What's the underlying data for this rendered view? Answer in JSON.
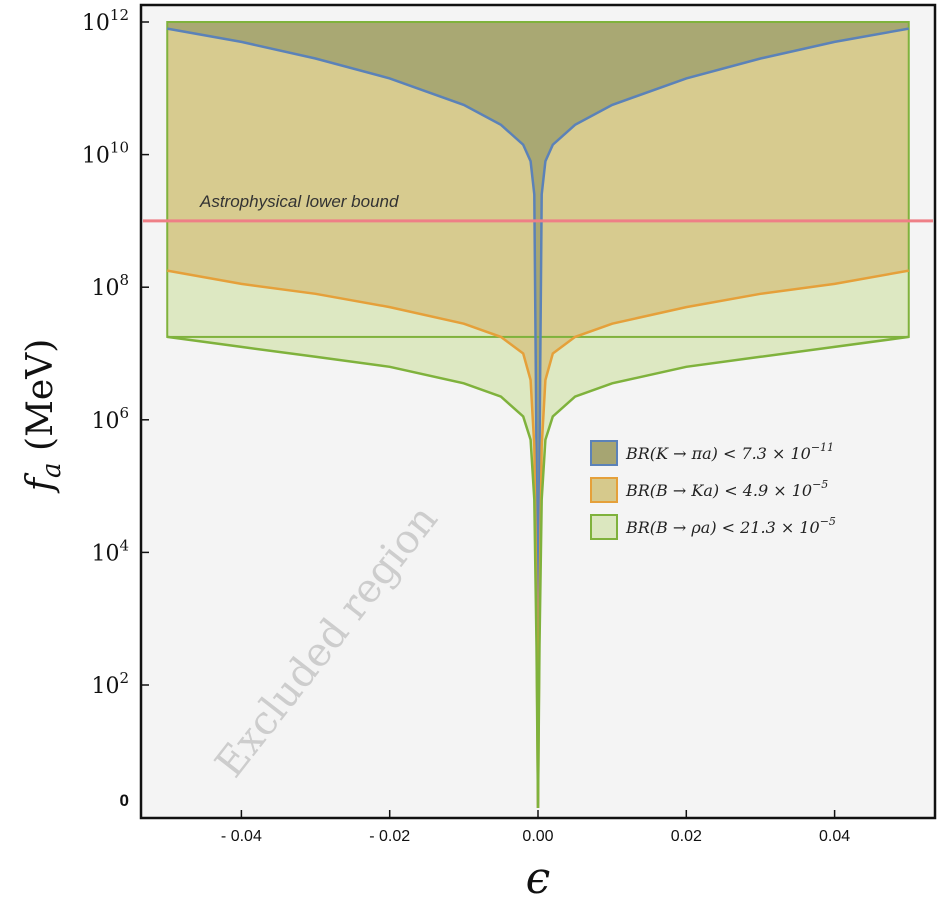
{
  "chart_data": {
    "type": "area",
    "xlabel": "ϵ",
    "ylabel": "f",
    "ylabel_sub": "a",
    "ylabel_unit": "(MeV)",
    "x_scale": "linear",
    "y_scale": "log",
    "xlim": [
      -0.053,
      0.053
    ],
    "ylim": [
      0,
      12.3
    ],
    "x_ticks": [
      {
        "value": -0.04,
        "label": "- 0.04"
      },
      {
        "value": -0.02,
        "label": "- 0.02"
      },
      {
        "value": 0.0,
        "label": "0.00"
      },
      {
        "value": 0.02,
        "label": "0.02"
      },
      {
        "value": 0.04,
        "label": "0.04"
      }
    ],
    "y_ticks": [
      {
        "value": 12,
        "base": "10",
        "exp": "12"
      },
      {
        "value": 10,
        "base": "10",
        "exp": "10"
      },
      {
        "value": 8,
        "base": "10",
        "exp": "8"
      },
      {
        "value": 6,
        "base": "10",
        "exp": "6"
      },
      {
        "value": 4,
        "base": "10",
        "exp": "4"
      },
      {
        "value": 2,
        "base": "10",
        "exp": "2"
      }
    ],
    "y_zero_label": "0",
    "series": [
      {
        "name": "BR(K → πa) < 7.3 × 10",
        "name_exp": "−11",
        "color": "#5b82b8",
        "fill": "#a6a572",
        "eps": [
          0.05,
          0.04,
          0.03,
          0.02,
          0.01,
          0.005,
          0.002,
          0.001,
          0.0005,
          0.0002
        ],
        "log10_fa": [
          11.9,
          11.7,
          11.45,
          11.15,
          10.75,
          10.45,
          10.15,
          9.9,
          9.4,
          5.5
        ]
      },
      {
        "name": "BR(B → Ka) < 4.9 × 10",
        "name_exp": "−5",
        "color": "#e5a03a",
        "fill": "#d6c98c",
        "eps": [
          0.05,
          0.04,
          0.03,
          0.02,
          0.01,
          0.005,
          0.002,
          0.001,
          0.0005,
          0.0002
        ],
        "log10_fa": [
          8.25,
          8.05,
          7.9,
          7.7,
          7.45,
          7.25,
          7.0,
          6.6,
          5.6,
          3.2
        ]
      },
      {
        "name": "BR(B → ρa) < 21.3 × 10",
        "name_exp": "−5",
        "color": "#7fb23c",
        "fill": "#dbe7bf",
        "eps": [
          0.05,
          0.04,
          0.03,
          0.02,
          0.01,
          0.005,
          0.002,
          0.001,
          0.0005,
          0.0002
        ],
        "log10_fa": [
          7.25,
          7.1,
          6.95,
          6.8,
          6.55,
          6.35,
          6.05,
          5.7,
          4.8,
          2.6
        ]
      }
    ],
    "region_eps": [
      -0.05,
      0.05
    ],
    "region_top": 12,
    "hline": {
      "log10_fa": 9.0,
      "label": "Astrophysical lower bound",
      "color": "#ee7f86"
    },
    "region_label": "Excluded region",
    "legend_position": "right-center",
    "grid": false
  }
}
